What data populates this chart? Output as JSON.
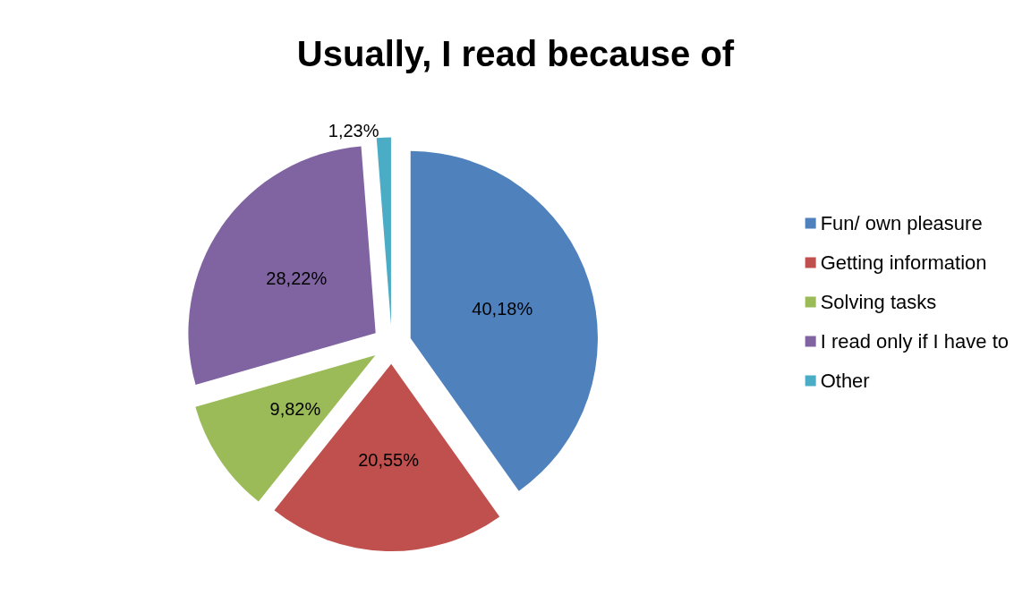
{
  "chart_data": {
    "type": "pie",
    "title": "Usually, I read because of",
    "categories": [
      "Fun/ own pleasure",
      "Getting information",
      "Solving tasks",
      "I read only if I have to",
      "Other"
    ],
    "values": [
      40.18,
      20.55,
      9.82,
      28.22,
      1.23
    ],
    "colors": [
      "#4f81bd",
      "#c0504d",
      "#9bbb59",
      "#8064a2",
      "#4bacc6"
    ],
    "value_labels": [
      "40,18%",
      "20,55%",
      "9,82%",
      "28,22%",
      "1,23%"
    ],
    "legend": "right"
  }
}
